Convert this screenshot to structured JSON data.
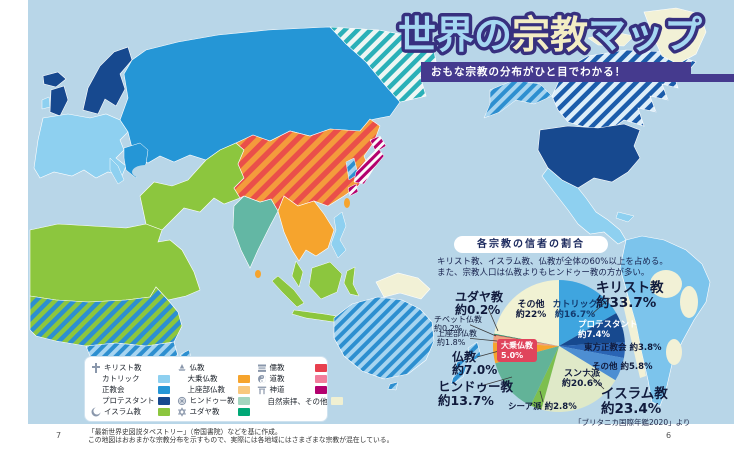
{
  "banner": {
    "title_part1": "世界の",
    "title_part2": "宗教",
    "title_part3": "マップ",
    "subtitle": "おもな宗教の分布がひと目でわかる！",
    "title_fill1": "#a5d7f2",
    "title_fill2": "#f3edc4",
    "title_outline": "#37307f",
    "bar_color": "#453a8e"
  },
  "chart_data": {
    "type": "pie",
    "title": "各宗教の信者の割合",
    "note_line1": "キリスト教、イスラム教、仏教が全体の60%以上を占める。",
    "note_line2": "また、宗教人口は仏教よりもヒンドゥー教の方が多い。",
    "source": "「ブリタニカ国際年鑑2020」より",
    "unit": "%",
    "segments": [
      {
        "label": "カトリック",
        "display_value": "約16.7%",
        "value": 16.7,
        "color": "#3fa5df"
      },
      {
        "label": "プロテスタント",
        "display_value": "約7.4%",
        "value": 7.4,
        "color": "#17498f"
      },
      {
        "label": "東方正教会",
        "display_value": "約3.8%",
        "value": 3.8,
        "color": "#2a64b4"
      },
      {
        "label": "その他",
        "display_value": "約5.8%",
        "value": 5.8,
        "color": "#4d8ed2"
      },
      {
        "label": "スンナ派",
        "display_value": "約20.6%",
        "value": 20.6,
        "color": "#dfe9c8"
      },
      {
        "label": "シーア派",
        "display_value": "約2.8%",
        "value": 2.8,
        "color": "#7dbf4e"
      },
      {
        "label": "ヒンドゥー教",
        "display_value": "約13.7%",
        "value": 13.7,
        "color": "#62b398"
      },
      {
        "label": "大乗仏教",
        "display_value": "5.0%",
        "value": 5.0,
        "color": "#f6a42d"
      },
      {
        "label": "上座部仏教",
        "display_value": "約1.8%",
        "value": 1.8,
        "color": "#f0a27e"
      },
      {
        "label": "チベット仏教",
        "display_value": "約0.2%",
        "value": 0.2,
        "color": "#c4504a"
      },
      {
        "label": "ユダヤ教",
        "display_value": "約0.2%",
        "value": 0.2,
        "color": "#1e8e66"
      },
      {
        "label": "その他",
        "display_value": "約22%",
        "value": 22.0,
        "color": "#f1f2d3"
      }
    ],
    "groups": [
      {
        "label": "キリスト教",
        "display_value": "約33.7%",
        "value": 33.7
      },
      {
        "label": "イスラム教",
        "display_value": "約23.4%",
        "value": 23.4
      },
      {
        "label": "ヒンドゥー教",
        "display_value": "約13.7%",
        "value": 13.7
      },
      {
        "label": "仏教",
        "display_value": "約7.0%",
        "value": 7.0
      },
      {
        "label": "ユダヤ教",
        "display_value": "約0.2%",
        "value": 0.2
      }
    ]
  },
  "legend": {
    "columns": [
      {
        "items": [
          {
            "icon": "cross-icon",
            "label": "キリスト教",
            "swatch": null,
            "indent": false
          },
          {
            "icon": null,
            "label": "カトリック",
            "swatch": "#8ed0f0",
            "indent": true
          },
          {
            "icon": null,
            "label": "正教会",
            "swatch": "#2596d6",
            "indent": true
          },
          {
            "icon": null,
            "label": "プロテスタント",
            "swatch": "#17498f",
            "indent": true
          },
          {
            "icon": "crescent-icon",
            "label": "イスラム教",
            "swatch": "#8cc63e",
            "indent": false
          }
        ]
      },
      {
        "items": [
          {
            "icon": "lotus-icon",
            "label": "仏教",
            "swatch": null,
            "indent": false
          },
          {
            "icon": null,
            "label": "大乗仏教",
            "swatch": "#f6a42d",
            "indent": true
          },
          {
            "icon": null,
            "label": "上座部仏教",
            "swatch": "#f8c87e",
            "indent": true
          },
          {
            "icon": "wheel-icon",
            "label": "ヒンドゥー教",
            "swatch": "#a3d5bf",
            "indent": false
          },
          {
            "icon": "star-icon",
            "label": "ユダヤ教",
            "swatch": "#00a876",
            "indent": false
          }
        ]
      },
      {
        "items": [
          {
            "icon": "scroll-icon",
            "label": "儒教",
            "swatch": "#e8404e",
            "indent": false
          },
          {
            "icon": "yinyang-icon",
            "label": "道教",
            "swatch": "#f27d9b",
            "indent": false
          },
          {
            "icon": "torii-icon",
            "label": "神道",
            "swatch": "#b4006e",
            "indent": false
          },
          {
            "icon": null,
            "label": "自然崇拝、その他",
            "swatch": "#f0f0d2",
            "indent": true
          }
        ]
      }
    ]
  },
  "map": {
    "ocean_color": "#b8d6e8"
  },
  "page": {
    "footer_line1": "「最新世界史図説タペストリー」（帝国書院）などを基に作成。",
    "footer_line2": "この地図はおおまかな宗教分布を示すもので、実際には各地域にはさまざまな宗教が混在している。",
    "left_page_number": "7",
    "right_page_number": "6"
  }
}
